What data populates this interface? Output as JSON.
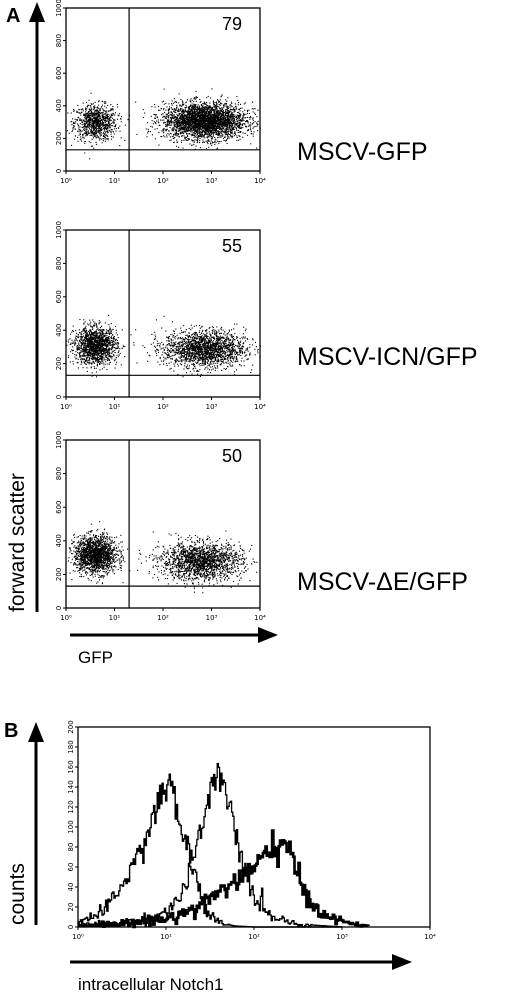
{
  "panel_a": {
    "label": "A",
    "y_axis_title": "forward scatter",
    "x_axis_title": "GFP"
  },
  "panel_b": {
    "label": "B",
    "y_axis_title": "counts",
    "x_axis_title": "intracellular Notch1"
  },
  "chart_data": [
    {
      "type": "scatter",
      "name_label": "MSCV-GFP",
      "gate_percent": "79",
      "xscale": "log",
      "xlim": [
        1,
        10000
      ],
      "ylim": [
        0,
        1000
      ],
      "xticks": [
        "10⁰",
        "10¹",
        "10²",
        "10³",
        "10⁴"
      ],
      "yticks": [
        "0",
        "200",
        "400",
        "600",
        "800",
        "1000"
      ],
      "gates": {
        "x": 20,
        "y": 130
      },
      "clusters": [
        {
          "x_center": 4,
          "y_center": 300,
          "count": 900
        },
        {
          "x_center": 700,
          "y_center": 310,
          "count": 3200
        }
      ]
    },
    {
      "type": "scatter",
      "name_label": "MSCV-ICN/GFP",
      "gate_percent": "55",
      "xscale": "log",
      "xlim": [
        1,
        10000
      ],
      "ylim": [
        0,
        1000
      ],
      "xticks": [
        "10⁰",
        "10¹",
        "10²",
        "10³",
        "10⁴"
      ],
      "yticks": [
        "0",
        "200",
        "400",
        "600",
        "800",
        "1000"
      ],
      "gates": {
        "x": 20,
        "y": 130
      },
      "clusters": [
        {
          "x_center": 4,
          "y_center": 310,
          "count": 1500
        },
        {
          "x_center": 700,
          "y_center": 290,
          "count": 1900
        }
      ]
    },
    {
      "type": "scatter",
      "name_label": "MSCV-ΔE/GFP",
      "gate_percent": "50",
      "xscale": "log",
      "xlim": [
        1,
        10000
      ],
      "ylim": [
        0,
        1000
      ],
      "xticks": [
        "10⁰",
        "10¹",
        "10²",
        "10³",
        "10⁴"
      ],
      "yticks": [
        "0",
        "200",
        "400",
        "600",
        "800",
        "1000"
      ],
      "gates": {
        "x": 20,
        "y": 130
      },
      "clusters": [
        {
          "x_center": 4,
          "y_center": 320,
          "count": 1700
        },
        {
          "x_center": 600,
          "y_center": 280,
          "count": 1800
        }
      ]
    },
    {
      "type": "line",
      "xscale": "log",
      "xlim": [
        1,
        10000
      ],
      "ylim": [
        0,
        200
      ],
      "xticks": [
        "10⁰",
        "10¹",
        "10²",
        "10³",
        "10⁴"
      ],
      "yticks": [
        "0",
        "20",
        "40",
        "60",
        "80",
        "100",
        "120",
        "140",
        "160",
        "180",
        "200"
      ],
      "series": [
        {
          "x": [
            1,
            2,
            3,
            5,
            7,
            9,
            11,
            13,
            16,
            20,
            25,
            30,
            40,
            60,
            100,
            200,
            1000
          ],
          "y": [
            5,
            15,
            40,
            75,
            108,
            135,
            140,
            118,
            88,
            58,
            30,
            12,
            4,
            1,
            0,
            0,
            0
          ]
        },
        {
          "x": [
            1,
            3,
            6,
            10,
            14,
            20,
            25,
            30,
            35,
            42,
            50,
            60,
            75,
            100,
            150,
            300,
            1000
          ],
          "y": [
            2,
            4,
            8,
            15,
            28,
            65,
            100,
            125,
            138,
            150,
            128,
            95,
            60,
            30,
            12,
            3,
            0
          ]
        },
        {
          "x": [
            1,
            3,
            10,
            20,
            30,
            50,
            80,
            100,
            130,
            160,
            190,
            220,
            260,
            320,
            420,
            600,
            1000,
            2000
          ],
          "y": [
            1,
            3,
            8,
            18,
            28,
            42,
            52,
            58,
            70,
            80,
            84,
            80,
            68,
            48,
            28,
            12,
            5,
            1
          ]
        }
      ]
    }
  ]
}
